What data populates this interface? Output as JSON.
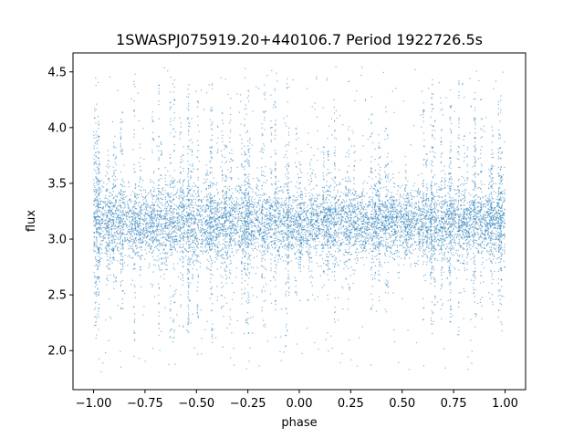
{
  "chart_data": {
    "type": "scatter",
    "title": "1SWASPJ075919.20+440106.7 Period 1922726.5s",
    "xlabel": "phase",
    "ylabel": "flux",
    "xlim": [
      -1.1,
      1.1
    ],
    "ylim": [
      1.65,
      4.67
    ],
    "x_ticks": [
      -1.0,
      -0.75,
      -0.5,
      -0.25,
      0.0,
      0.25,
      0.5,
      0.75,
      1.0
    ],
    "x_tick_labels": [
      "−1.00",
      "−0.75",
      "−0.50",
      "−0.25",
      "0.00",
      "0.25",
      "0.50",
      "0.75",
      "1.00"
    ],
    "y_ticks": [
      2.0,
      2.5,
      3.0,
      3.5,
      4.0,
      4.5
    ],
    "y_tick_labels": [
      "2.0",
      "2.5",
      "3.0",
      "3.5",
      "4.0",
      "4.5"
    ],
    "grid": false,
    "series_color": "#1f77b4",
    "phase_range": [
      -1.0,
      1.0
    ],
    "baseline_flux": 3.15,
    "core_flux_range": [
      2.8,
      3.5
    ],
    "flux_range": [
      1.8,
      4.55
    ]
  }
}
